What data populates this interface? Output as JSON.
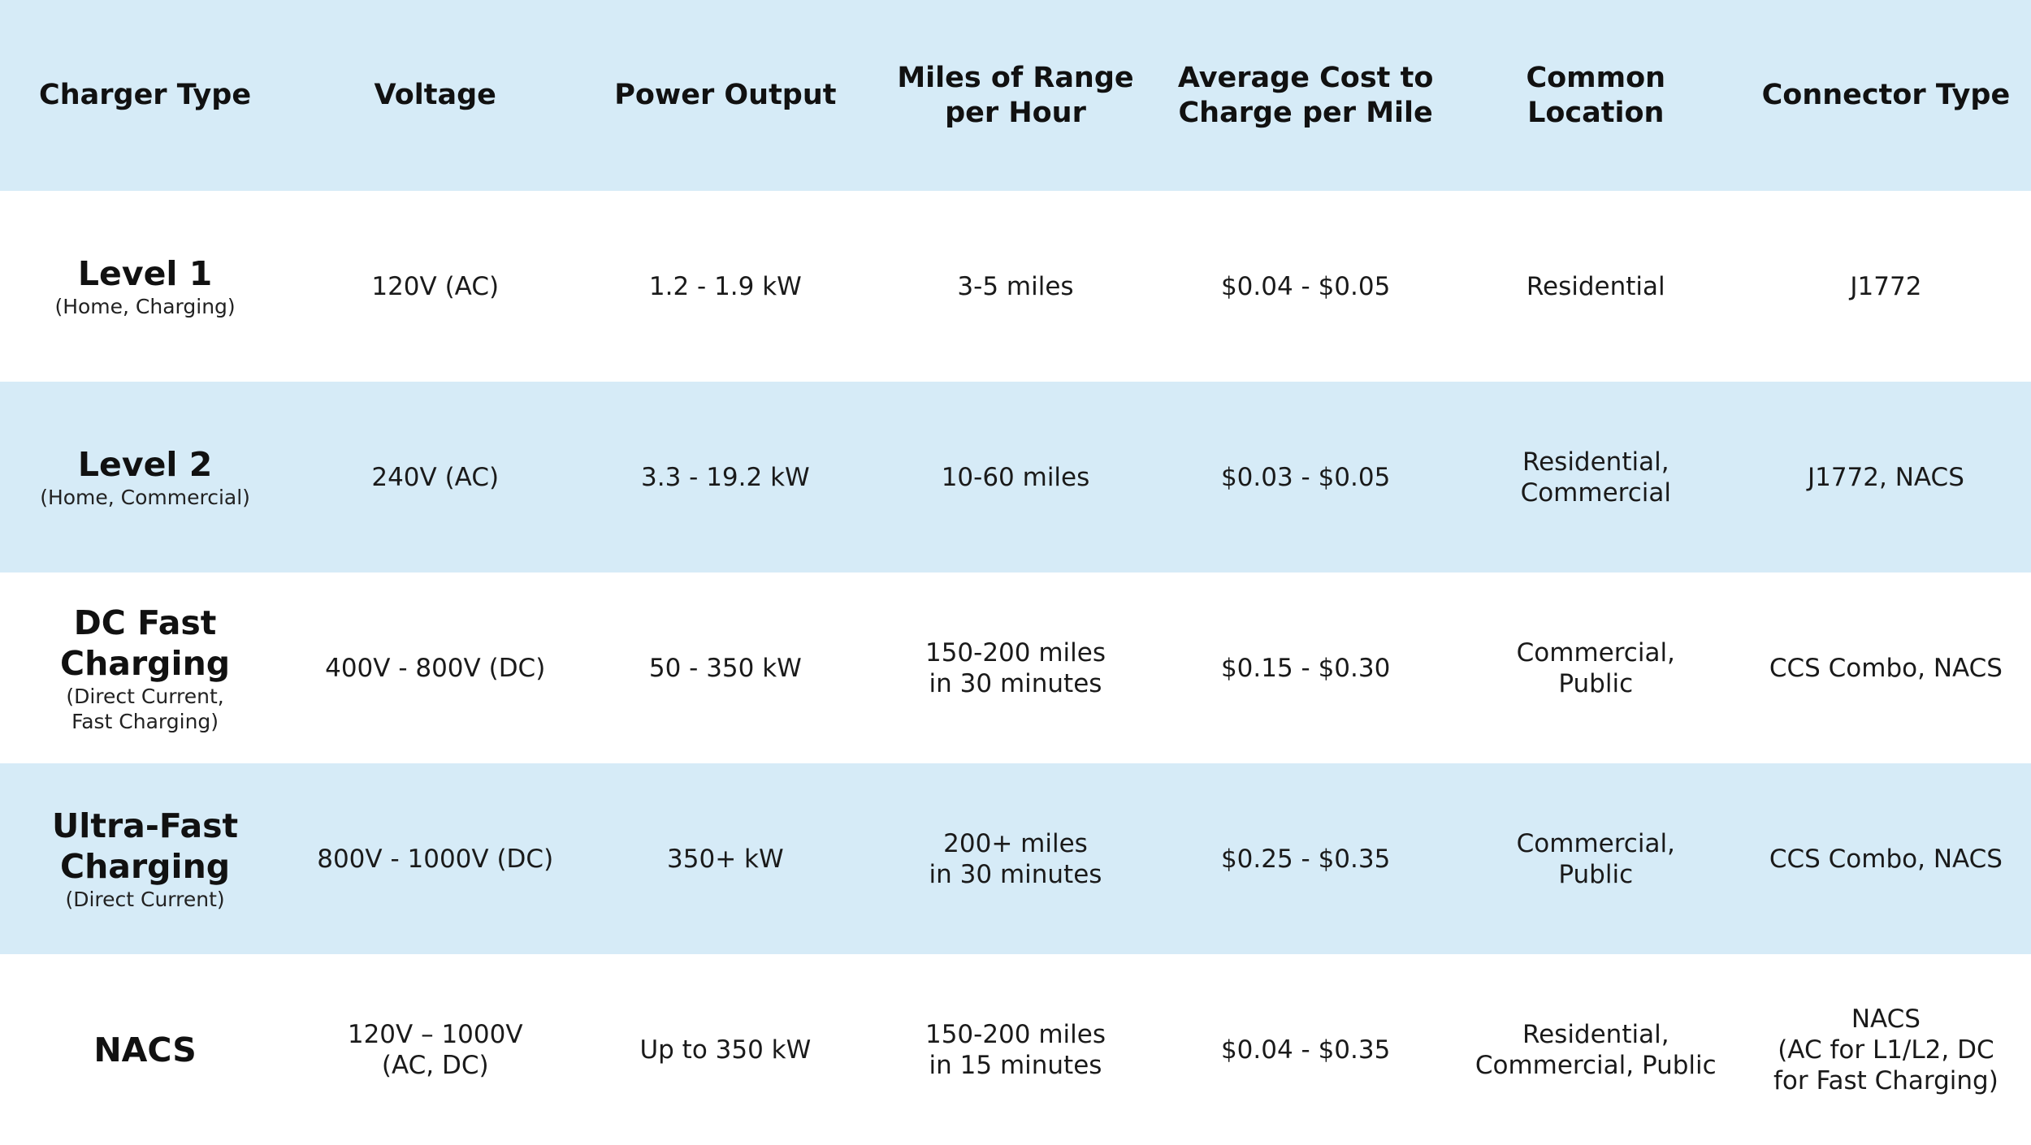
{
  "header": {
    "charger_type": "Charger Type",
    "voltage": "Voltage",
    "power_output": "Power Output",
    "miles_per_hour": "Miles of Range\nper Hour",
    "cost_per_mile": "Average Cost to\nCharge per Mile",
    "common_location": "Common\nLocation",
    "connector_type": "Connector Type"
  },
  "rows": [
    {
      "name": "Level 1",
      "sub": "(Home, Charging)",
      "voltage": "120V (AC)",
      "power": "1.2 - 1.9 kW",
      "range": "3-5 miles",
      "cost": "$0.04 - $0.05",
      "location": "Residential",
      "connector": "J1772"
    },
    {
      "name": "Level 2",
      "sub": "(Home, Commercial)",
      "voltage": "240V (AC)",
      "power": "3.3 - 19.2 kW",
      "range": "10-60 miles",
      "cost": "$0.03 - $0.05",
      "location": "Residential,\nCommercial",
      "connector": "J1772, NACS"
    },
    {
      "name": "DC Fast\nCharging",
      "sub": "(Direct Current,\nFast Charging)",
      "voltage": "400V - 800V (DC)",
      "power": "50 - 350 kW",
      "range": "150-200 miles\nin 30 minutes",
      "cost": "$0.15 - $0.30",
      "location": "Commercial,\nPublic",
      "connector": "CCS Combo, NACS"
    },
    {
      "name": "Ultra-Fast\nCharging",
      "sub": "(Direct Current)",
      "voltage": "800V - 1000V (DC)",
      "power": "350+ kW",
      "range": "200+ miles\nin 30 minutes",
      "cost": "$0.25 - $0.35",
      "location": "Commercial,\nPublic",
      "connector": "CCS Combo, NACS"
    },
    {
      "name": "NACS",
      "voltage": "120V – 1000V\n(AC, DC)",
      "power": "Up to 350 kW",
      "range": "150-200 miles\nin 15 minutes",
      "cost": "$0.04 - $0.35",
      "location": "Residential,\nCommercial, Public",
      "connector": "NACS\n(AC for L1/L2, DC\nfor Fast Charging)"
    }
  ],
  "colors": {
    "shaded_row": "#d6ebf7",
    "plain_row": "#ffffff",
    "text": "#111111"
  }
}
